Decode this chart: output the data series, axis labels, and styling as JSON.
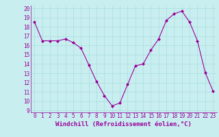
{
  "x": [
    0,
    1,
    2,
    3,
    4,
    5,
    6,
    7,
    8,
    9,
    10,
    11,
    12,
    13,
    14,
    15,
    16,
    17,
    18,
    19,
    20,
    21,
    22,
    23
  ],
  "y": [
    18.5,
    16.5,
    16.5,
    16.5,
    16.7,
    16.3,
    15.7,
    13.9,
    12.1,
    10.6,
    9.5,
    9.8,
    11.8,
    13.8,
    14.0,
    15.5,
    16.7,
    18.7,
    19.4,
    19.7,
    18.5,
    16.5,
    13.1,
    11.1
  ],
  "line_color": "#990099",
  "marker": "D",
  "marker_size": 2,
  "bg_color": "#c8eef0",
  "grid_color": "#aadddd",
  "xlabel": "Windchill (Refroidissement éolien,°C)",
  "xlabel_color": "#990099",
  "tick_color": "#990099",
  "ylim": [
    9,
    20
  ],
  "xlim": [
    -0.5,
    23.5
  ],
  "yticks": [
    9,
    10,
    11,
    12,
    13,
    14,
    15,
    16,
    17,
    18,
    19,
    20
  ],
  "xticks": [
    0,
    1,
    2,
    3,
    4,
    5,
    6,
    7,
    8,
    9,
    10,
    11,
    12,
    13,
    14,
    15,
    16,
    17,
    18,
    19,
    20,
    21,
    22,
    23
  ],
  "tick_fontsize": 5.5,
  "xlabel_fontsize": 6.5
}
